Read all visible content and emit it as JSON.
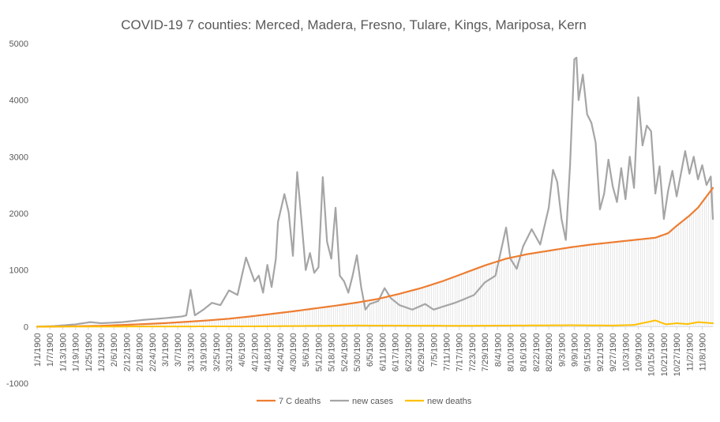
{
  "chart_data": {
    "type": "line",
    "title": "COVID-19 7 counties:  Merced,  Madera,  Fresno,  Tulare,  Kings,  Mariposa,  Kern",
    "xlabel": "",
    "ylabel": "",
    "ylim": [
      -1000,
      5000
    ],
    "yticks": [
      "-1000",
      "0",
      "1000",
      "2000",
      "3000",
      "4000",
      "5000"
    ],
    "x_start": "1/1/1900",
    "x_count": 318,
    "xticks": [
      "1/1/1900",
      "1/7/1900",
      "1/13/1900",
      "1/19/1900",
      "1/25/1900",
      "1/31/1900",
      "2/6/1900",
      "2/12/1900",
      "2/18/1900",
      "2/24/1900",
      "3/1/1900",
      "3/7/1900",
      "3/13/1900",
      "3/19/1900",
      "3/25/1900",
      "3/31/1900",
      "4/6/1900",
      "4/12/1900",
      "4/18/1900",
      "4/24/1900",
      "4/30/1900",
      "5/6/1900",
      "5/12/1900",
      "5/18/1900",
      "5/24/1900",
      "5/30/1900",
      "6/5/1900",
      "6/11/1900",
      "6/17/1900",
      "6/23/1900",
      "6/29/1900",
      "7/5/1900",
      "7/11/1900",
      "7/17/1900",
      "7/23/1900",
      "7/29/1900",
      "8/4/1900",
      "8/10/1900",
      "8/16/1900",
      "8/22/1900",
      "8/28/1900",
      "9/3/1900",
      "9/9/1900",
      "9/15/1900",
      "9/21/1900",
      "9/27/1900",
      "10/3/1900",
      "10/9/1900",
      "10/15/1900",
      "10/21/1900",
      "10/27/1900",
      "11/2/1900",
      "11/8/1900"
    ],
    "gridlines": false,
    "legend_position": "bottom",
    "series": [
      {
        "name": "7 C deaths",
        "color": "#ED7D31",
        "width": 2.2
      },
      {
        "name": "new cases",
        "color": "#A5A5A5",
        "width": 2.2
      },
      {
        "name": "new deaths",
        "color": "#FFC000",
        "width": 2
      }
    ],
    "series_keyframes": {
      "7 C deaths": [
        [
          0,
          0
        ],
        [
          10,
          2
        ],
        [
          20,
          8
        ],
        [
          30,
          15
        ],
        [
          40,
          30
        ],
        [
          50,
          45
        ],
        [
          60,
          62
        ],
        [
          70,
          85
        ],
        [
          80,
          110
        ],
        [
          90,
          140
        ],
        [
          100,
          180
        ],
        [
          110,
          225
        ],
        [
          120,
          270
        ],
        [
          130,
          320
        ],
        [
          140,
          370
        ],
        [
          150,
          425
        ],
        [
          160,
          490
        ],
        [
          170,
          580
        ],
        [
          180,
          680
        ],
        [
          190,
          800
        ],
        [
          200,
          940
        ],
        [
          210,
          1080
        ],
        [
          220,
          1200
        ],
        [
          230,
          1280
        ],
        [
          240,
          1340
        ],
        [
          250,
          1400
        ],
        [
          260,
          1450
        ],
        [
          270,
          1490
        ],
        [
          280,
          1530
        ],
        [
          290,
          1570
        ],
        [
          296,
          1650
        ],
        [
          300,
          1780
        ],
        [
          304,
          1900
        ],
        [
          306,
          1960
        ],
        [
          310,
          2100
        ],
        [
          314,
          2300
        ],
        [
          317,
          2450
        ]
      ],
      "new cases": [
        [
          0,
          0
        ],
        [
          8,
          10
        ],
        [
          18,
          40
        ],
        [
          25,
          80
        ],
        [
          30,
          60
        ],
        [
          40,
          80
        ],
        [
          50,
          120
        ],
        [
          60,
          150
        ],
        [
          68,
          180
        ],
        [
          70,
          200
        ],
        [
          72,
          650
        ],
        [
          74,
          200
        ],
        [
          78,
          300
        ],
        [
          82,
          420
        ],
        [
          86,
          380
        ],
        [
          90,
          640
        ],
        [
          94,
          560
        ],
        [
          98,
          1220
        ],
        [
          102,
          800
        ],
        [
          104,
          900
        ],
        [
          106,
          600
        ],
        [
          108,
          1090
        ],
        [
          110,
          700
        ],
        [
          112,
          1200
        ],
        [
          113,
          1850
        ],
        [
          116,
          2340
        ],
        [
          118,
          2020
        ],
        [
          120,
          1250
        ],
        [
          122,
          2730
        ],
        [
          124,
          1880
        ],
        [
          126,
          1000
        ],
        [
          128,
          1300
        ],
        [
          130,
          950
        ],
        [
          132,
          1050
        ],
        [
          134,
          2640
        ],
        [
          136,
          1500
        ],
        [
          138,
          1200
        ],
        [
          140,
          2100
        ],
        [
          142,
          900
        ],
        [
          144,
          800
        ],
        [
          146,
          600
        ],
        [
          148,
          900
        ],
        [
          150,
          1260
        ],
        [
          152,
          700
        ],
        [
          154,
          300
        ],
        [
          156,
          400
        ],
        [
          160,
          450
        ],
        [
          163,
          680
        ],
        [
          166,
          500
        ],
        [
          170,
          380
        ],
        [
          176,
          300
        ],
        [
          182,
          400
        ],
        [
          186,
          300
        ],
        [
          190,
          350
        ],
        [
          196,
          420
        ],
        [
          200,
          480
        ],
        [
          205,
          560
        ],
        [
          210,
          780
        ],
        [
          215,
          900
        ],
        [
          220,
          1750
        ],
        [
          222,
          1200
        ],
        [
          225,
          1020
        ],
        [
          228,
          1420
        ],
        [
          232,
          1720
        ],
        [
          236,
          1450
        ],
        [
          240,
          2100
        ],
        [
          242,
          2770
        ],
        [
          244,
          2550
        ],
        [
          246,
          1900
        ],
        [
          248,
          1530
        ],
        [
          250,
          2850
        ],
        [
          252,
          4720
        ],
        [
          253,
          4750
        ],
        [
          254,
          4000
        ],
        [
          256,
          4450
        ],
        [
          258,
          3750
        ],
        [
          260,
          3600
        ],
        [
          262,
          3250
        ],
        [
          264,
          2070
        ],
        [
          266,
          2350
        ],
        [
          268,
          2950
        ],
        [
          270,
          2480
        ],
        [
          272,
          2200
        ],
        [
          274,
          2800
        ],
        [
          276,
          2250
        ],
        [
          278,
          3000
        ],
        [
          280,
          2450
        ],
        [
          282,
          4050
        ],
        [
          284,
          3200
        ],
        [
          286,
          3550
        ],
        [
          288,
          3450
        ],
        [
          290,
          2350
        ],
        [
          292,
          2830
        ],
        [
          294,
          1900
        ],
        [
          296,
          2400
        ],
        [
          298,
          2750
        ],
        [
          300,
          2300
        ],
        [
          302,
          2700
        ],
        [
          304,
          3100
        ],
        [
          306,
          2700
        ],
        [
          308,
          3000
        ],
        [
          310,
          2600
        ],
        [
          312,
          2850
        ],
        [
          314,
          2500
        ],
        [
          316,
          2650
        ],
        [
          317,
          1900
        ]
      ],
      "new deaths": [
        [
          0,
          0
        ],
        [
          100,
          5
        ],
        [
          150,
          20
        ],
        [
          200,
          15
        ],
        [
          250,
          25
        ],
        [
          270,
          20
        ],
        [
          280,
          30
        ],
        [
          290,
          110
        ],
        [
          295,
          40
        ],
        [
          300,
          60
        ],
        [
          305,
          45
        ],
        [
          310,
          80
        ],
        [
          317,
          60
        ]
      ]
    }
  }
}
